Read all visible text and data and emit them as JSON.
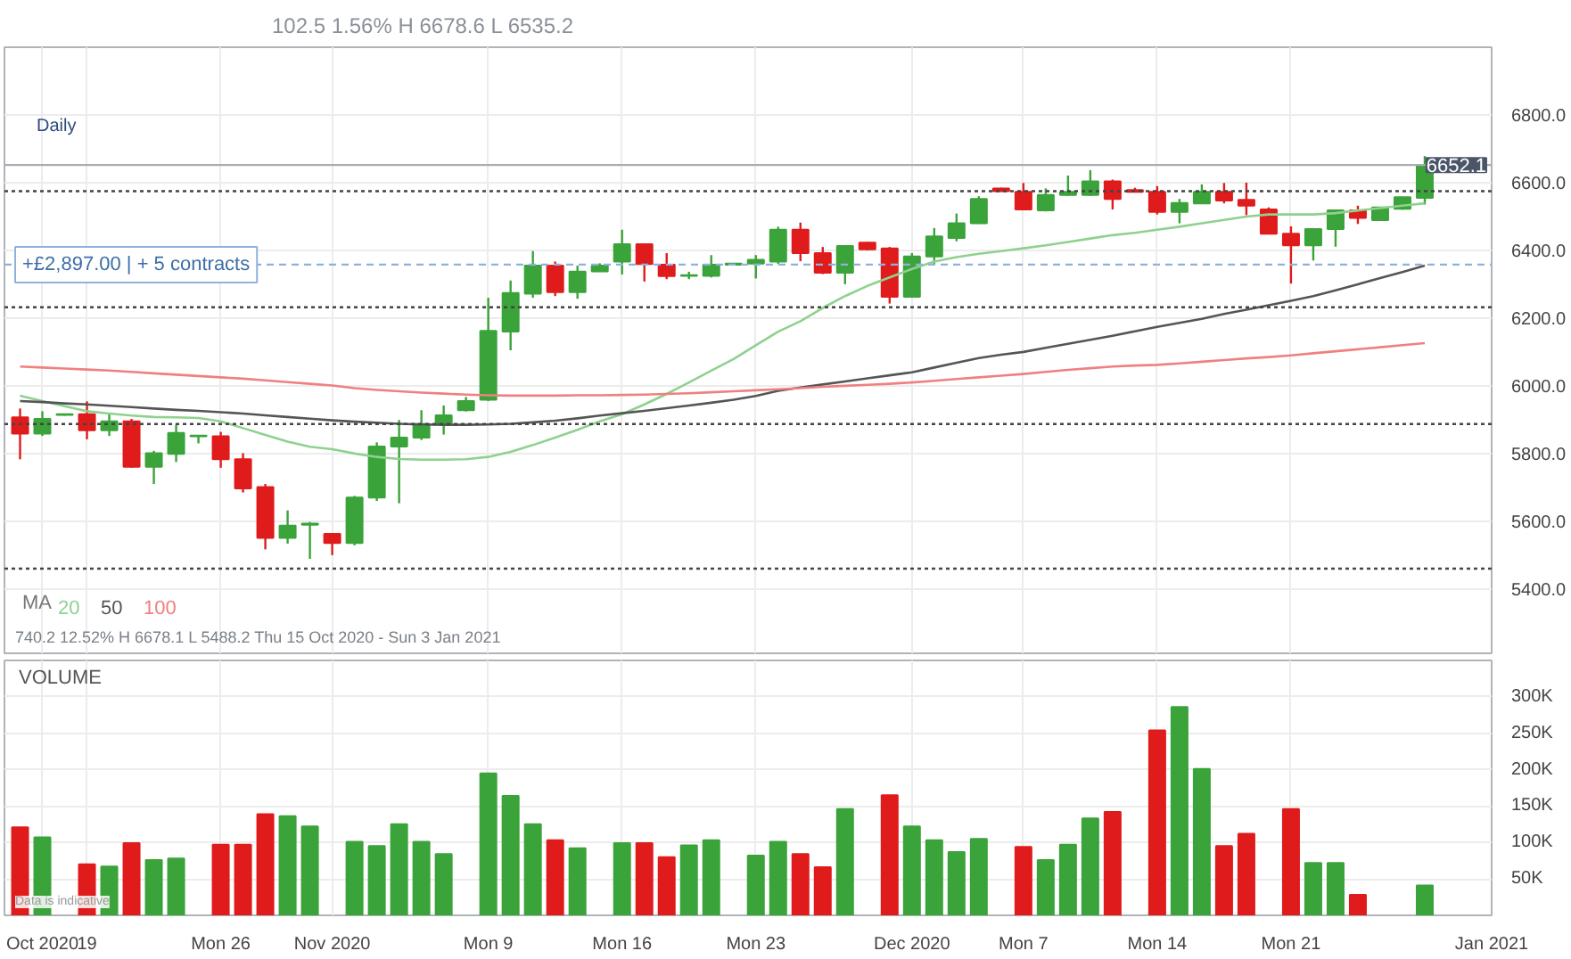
{
  "chart_data": [
    {
      "type": "candlestick",
      "subtitle": "102.5  1.56%  H 6678.6  L 6535.2",
      "ohlc": [
        [
          5907,
          5933,
          5783,
          5859
        ],
        [
          5859,
          5925,
          5852,
          5902
        ],
        [
          5914,
          5918,
          5912,
          5916
        ],
        [
          5916,
          5954,
          5842,
          5869
        ],
        [
          5869,
          5916,
          5852,
          5895
        ],
        [
          5895,
          5902,
          5758,
          5761
        ],
        [
          5761,
          5808,
          5710,
          5801
        ],
        [
          5799,
          5885,
          5775,
          5861
        ],
        [
          5851,
          5853,
          5830,
          5853
        ],
        [
          5851,
          5864,
          5758,
          5783
        ],
        [
          5783,
          5801,
          5685,
          5697
        ],
        [
          5701,
          5710,
          5517,
          5551
        ],
        [
          5551,
          5632,
          5534,
          5587
        ],
        [
          5590,
          5598,
          5489,
          5593
        ],
        [
          5563,
          5563,
          5500,
          5536
        ],
        [
          5536,
          5675,
          5529,
          5670
        ],
        [
          5670,
          5833,
          5660,
          5821
        ],
        [
          5821,
          5899,
          5653,
          5847
        ],
        [
          5847,
          5928,
          5840,
          5887
        ],
        [
          5887,
          5942,
          5856,
          5913
        ],
        [
          5928,
          5967,
          5924,
          5955
        ],
        [
          5959,
          6260,
          5955,
          6162
        ],
        [
          6160,
          6311,
          6105,
          6274
        ],
        [
          6272,
          6398,
          6260,
          6355
        ],
        [
          6355,
          6367,
          6265,
          6277
        ],
        [
          6277,
          6355,
          6257,
          6337
        ],
        [
          6338,
          6362,
          6336,
          6355
        ],
        [
          6367,
          6461,
          6329,
          6418
        ],
        [
          6418,
          6420,
          6308,
          6360
        ],
        [
          6358,
          6392,
          6315,
          6324
        ],
        [
          6325,
          6337,
          6315,
          6327
        ],
        [
          6325,
          6386,
          6320,
          6358
        ],
        [
          6358,
          6362,
          6358,
          6361
        ],
        [
          6361,
          6386,
          6317,
          6372
        ],
        [
          6367,
          6470,
          6360,
          6461
        ],
        [
          6461,
          6482,
          6368,
          6392
        ],
        [
          6392,
          6410,
          6330,
          6334
        ],
        [
          6334,
          6415,
          6300,
          6413
        ],
        [
          6423,
          6425,
          6400,
          6403
        ],
        [
          6406,
          6410,
          6243,
          6263
        ],
        [
          6263,
          6392,
          6260,
          6382
        ],
        [
          6382,
          6466,
          6355,
          6441
        ],
        [
          6437,
          6509,
          6427,
          6480
        ],
        [
          6480,
          6560,
          6478,
          6552
        ],
        [
          6583,
          6585,
          6573,
          6575
        ],
        [
          6573,
          6599,
          6519,
          6521
        ],
        [
          6518,
          6583,
          6515,
          6564
        ],
        [
          6564,
          6621,
          6561,
          6573
        ],
        [
          6564,
          6637,
          6561,
          6604
        ],
        [
          6604,
          6609,
          6521,
          6552
        ],
        [
          6578,
          6585,
          6571,
          6573
        ],
        [
          6573,
          6590,
          6506,
          6514
        ],
        [
          6514,
          6552,
          6480,
          6540
        ],
        [
          6539,
          6595,
          6537,
          6573
        ],
        [
          6573,
          6599,
          6539,
          6547
        ],
        [
          6549,
          6600,
          6504,
          6532
        ],
        [
          6521,
          6527,
          6447,
          6449
        ],
        [
          6449,
          6471,
          6302,
          6415
        ],
        [
          6415,
          6463,
          6370,
          6463
        ],
        [
          6463,
          6518,
          6411,
          6518
        ],
        [
          6518,
          6532,
          6478,
          6496
        ],
        [
          6489,
          6527,
          6489,
          6527
        ],
        [
          6523,
          6557,
          6520,
          6557
        ],
        [
          6555,
          6678.6,
          6535.2,
          6652.1
        ],
        null,
        null,
        null
      ],
      "colors": [
        "#e01b1b",
        "#3aa33a",
        "#3aa33a",
        "#e01b1b",
        "#3aa33a",
        "#e01b1b",
        "#3aa33a",
        "#3aa33a",
        "#3aa33a",
        "#e01b1b",
        "#e01b1b",
        "#e01b1b",
        "#3aa33a",
        "#3aa33a",
        "#e01b1b",
        "#3aa33a",
        "#3aa33a",
        "#3aa33a",
        "#3aa33a",
        "#3aa33a",
        "#3aa33a",
        "#3aa33a",
        "#3aa33a",
        "#3aa33a",
        "#e01b1b",
        "#3aa33a",
        "#3aa33a",
        "#3aa33a",
        "#e01b1b",
        "#e01b1b",
        "#3aa33a",
        "#3aa33a",
        "#3aa33a",
        "#3aa33a",
        "#3aa33a",
        "#e01b1b",
        "#e01b1b",
        "#3aa33a",
        "#e01b1b",
        "#e01b1b",
        "#3aa33a",
        "#3aa33a",
        "#3aa33a",
        "#3aa33a",
        "#e01b1b",
        "#e01b1b",
        "#3aa33a",
        "#3aa33a",
        "#3aa33a",
        "#e01b1b",
        "#e01b1b",
        "#e01b1b",
        "#3aa33a",
        "#3aa33a",
        "#e01b1b",
        "#e01b1b",
        "#e01b1b",
        "#e01b1b",
        "#3aa33a",
        "#3aa33a",
        "#e01b1b",
        "#3aa33a",
        "#3aa33a",
        "#3aa33a",
        null,
        null,
        null
      ],
      "series": [
        {
          "name": "20",
          "type": "line",
          "color": "#8fd18f",
          "values": [
            5971,
            5955,
            5940,
            5925,
            5918,
            5912,
            5908,
            5907,
            5905,
            5895,
            5875,
            5855,
            5835,
            5820,
            5813,
            5800,
            5790,
            5784,
            5782,
            5782,
            5783,
            5790,
            5805,
            5825,
            5847,
            5870,
            5895,
            5916,
            5945,
            5976,
            6010,
            6045,
            6079,
            6120,
            6160,
            6191,
            6230,
            6265,
            6295,
            6320,
            6345,
            6367,
            6380,
            6390,
            6398,
            6406,
            6415,
            6425,
            6435,
            6445,
            6452,
            6461,
            6470,
            6480,
            6490,
            6500,
            6506,
            6506,
            6506,
            6510,
            6518,
            6525,
            6532,
            6539,
            null,
            null,
            null
          ]
        },
        {
          "name": "50",
          "type": "line",
          "color": "#555555",
          "values": [
            5955,
            5952,
            5948,
            5945,
            5941,
            5937,
            5933,
            5929,
            5926,
            5922,
            5918,
            5913,
            5908,
            5903,
            5898,
            5894,
            5891,
            5888,
            5886,
            5885,
            5885,
            5886,
            5888,
            5892,
            5897,
            5904,
            5912,
            5919,
            5926,
            5934,
            5942,
            5950,
            5959,
            5970,
            5985,
            5995,
            6004,
            6013,
            6022,
            6031,
            6040,
            6054,
            6068,
            6082,
            6092,
            6100,
            6112,
            6124,
            6136,
            6148,
            6161,
            6174,
            6186,
            6198,
            6212,
            6225,
            6238,
            6251,
            6265,
            6282,
            6300,
            6318,
            6336,
            6355,
            null,
            null,
            null
          ]
        },
        {
          "name": "100",
          "type": "line",
          "color": "#f08080",
          "values": [
            6057,
            6054,
            6051,
            6048,
            6045,
            6041,
            6037,
            6033,
            6029,
            6025,
            6021,
            6016,
            6011,
            6006,
            6001,
            5993,
            5988,
            5984,
            5980,
            5977,
            5974,
            5972,
            5971,
            5971,
            5971,
            5972,
            5972,
            5973,
            5974,
            5976,
            5978,
            5981,
            5984,
            5987,
            5990,
            5993,
            5997,
            6000,
            6003,
            6006,
            6010,
            6015,
            6020,
            6025,
            6030,
            6035,
            6041,
            6047,
            6052,
            6057,
            6060,
            6062,
            6066,
            6071,
            6076,
            6081,
            6085,
            6090,
            6096,
            6102,
            6108,
            6114,
            6120,
            6126,
            null,
            null,
            null
          ]
        }
      ],
      "legend": "bottom left",
      "legend_title": "MA",
      "ylim": [
        5210,
        7000
      ],
      "yticks": [
        {
          "value": 5400,
          "label": "5400.0"
        },
        {
          "value": 5600,
          "label": "5600.0"
        },
        {
          "value": 5800,
          "label": "5800.0"
        },
        {
          "value": 6000,
          "label": "6000.0"
        },
        {
          "value": 6200,
          "label": "6200.0"
        },
        {
          "value": 6400,
          "label": "6400.0"
        },
        {
          "value": 6600,
          "label": "6600.0"
        },
        {
          "value": 6800,
          "label": "6800.0"
        }
      ],
      "grid": true,
      "tick_labels": "y",
      "ref_lines": [
        {
          "axis": "y",
          "value": 6575,
          "color": "#444444",
          "line_style": "dotted"
        },
        {
          "axis": "y",
          "value": 6232,
          "color": "#444444",
          "line_style": "dotted"
        },
        {
          "axis": "y",
          "value": 5887,
          "color": "#444444",
          "line_style": "dotted"
        },
        {
          "axis": "y",
          "value": 5460,
          "color": "#444444",
          "line_style": "dotted"
        },
        {
          "axis": "y",
          "value": 6652.1,
          "label": "6652.1",
          "color": "#a9adb3",
          "line_style": "solid"
        },
        {
          "axis": "y",
          "value": 6358,
          "label": "+£2,897.00 | + 5 contracts",
          "color": "#8fb2dc",
          "line_style": "dashed"
        }
      ],
      "annotations": [
        "Daily",
        "740.2    12.52%    H 6678.1    L 5488.2    Thu 15 Oct 2020 - Sun 3 Jan 2021"
      ]
    },
    {
      "type": "bar",
      "title": "VOLUME",
      "categories": [
        null,
        "Oct 2020",
        null,
        "19",
        null,
        null,
        null,
        null,
        null,
        "Mon 26",
        null,
        null,
        null,
        null,
        "Nov 2020",
        null,
        null,
        null,
        null,
        null,
        null,
        "Mon 9",
        null,
        null,
        null,
        null,
        null,
        "Mon 16",
        null,
        null,
        null,
        null,
        null,
        "Mon 23",
        null,
        null,
        null,
        null,
        null,
        null,
        "Dec 2020",
        null,
        null,
        null,
        null,
        "Mon 7",
        null,
        null,
        null,
        null,
        null,
        "Mon 14",
        null,
        null,
        null,
        null,
        null,
        "Mon 21",
        null,
        null,
        null,
        null,
        null,
        null,
        null,
        null,
        "Jan 2021"
      ],
      "values": [
        121,
        107,
        null,
        70,
        67,
        99,
        76,
        78,
        null,
        97,
        97,
        139,
        136,
        122,
        null,
        101,
        95,
        125,
        101,
        84,
        null,
        195,
        164,
        125,
        103,
        92,
        null,
        99,
        99,
        80,
        96,
        103,
        null,
        82,
        101,
        84,
        66,
        146,
        null,
        165,
        122,
        103,
        87,
        105,
        null,
        94,
        76,
        97,
        133,
        142,
        null,
        254,
        286,
        201,
        95,
        112,
        null,
        146,
        72,
        72,
        28,
        null,
        null,
        41,
        null,
        null,
        null
      ],
      "colors": [
        "#e01b1b",
        "#3aa33a",
        null,
        "#e01b1b",
        "#3aa33a",
        "#e01b1b",
        "#3aa33a",
        "#3aa33a",
        null,
        "#e01b1b",
        "#e01b1b",
        "#e01b1b",
        "#3aa33a",
        "#3aa33a",
        null,
        "#3aa33a",
        "#3aa33a",
        "#3aa33a",
        "#3aa33a",
        "#3aa33a",
        null,
        "#3aa33a",
        "#3aa33a",
        "#3aa33a",
        "#e01b1b",
        "#3aa33a",
        null,
        "#3aa33a",
        "#e01b1b",
        "#e01b1b",
        "#3aa33a",
        "#3aa33a",
        null,
        "#3aa33a",
        "#3aa33a",
        "#e01b1b",
        "#e01b1b",
        "#3aa33a",
        null,
        "#e01b1b",
        "#3aa33a",
        "#3aa33a",
        "#3aa33a",
        "#3aa33a",
        null,
        "#e01b1b",
        "#3aa33a",
        "#3aa33a",
        "#3aa33a",
        "#e01b1b",
        null,
        "#e01b1b",
        "#3aa33a",
        "#3aa33a",
        "#e01b1b",
        "#e01b1b",
        null,
        "#e01b1b",
        "#3aa33a",
        "#3aa33a",
        "#e01b1b",
        null,
        null,
        "#3aa33a",
        null,
        null,
        null
      ],
      "ylim": [
        0,
        350
      ],
      "yticks": [
        {
          "value": 50,
          "label": "50K"
        },
        {
          "value": 100,
          "label": "100K"
        },
        {
          "value": 150,
          "label": "150K"
        },
        {
          "value": 200,
          "label": "200K"
        },
        {
          "value": 250,
          "label": "250K"
        },
        {
          "value": 300,
          "label": "300K"
        }
      ],
      "grid": true,
      "annotations": [
        "Data is indicative"
      ]
    }
  ]
}
